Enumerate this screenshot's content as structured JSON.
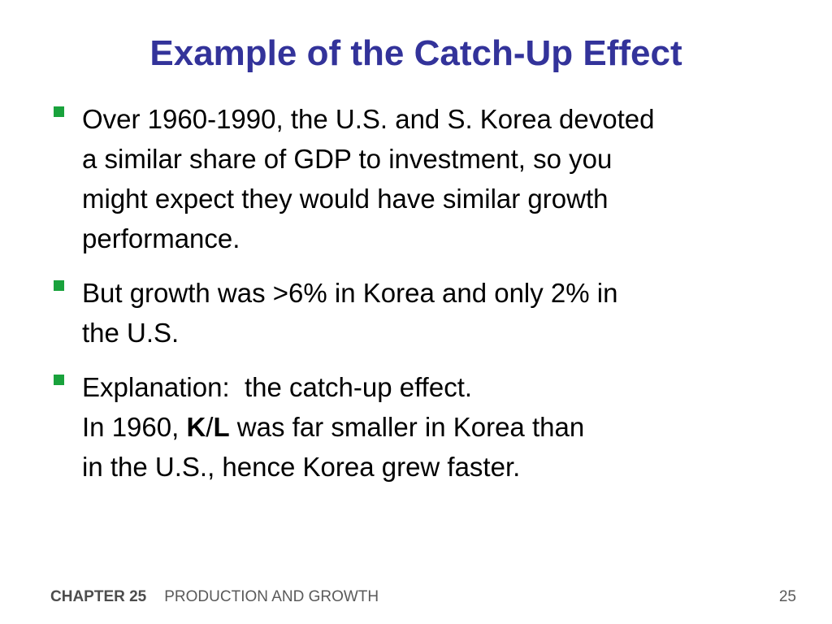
{
  "slide": {
    "title": "Example of the Catch-Up Effect",
    "bullets": [
      {
        "lines": [
          "Over 1960-1990, the U.S. and S. Korea devoted",
          "a similar share of GDP to investment, so you",
          "might expect they would have similar growth",
          "performance."
        ]
      },
      {
        "lines": [
          "But growth was >6% in Korea and only 2% in",
          "the U.S."
        ]
      },
      {
        "line1": "Explanation:  the catch-up effect.",
        "line2_prefix": "In 1960, ",
        "line2_bold_k": "K",
        "line2_slash": "/",
        "line2_bold_l": "L",
        "line2_suffix": " was far smaller in Korea than",
        "line3": "in the U.S., hence Korea grew faster."
      }
    ]
  },
  "footer": {
    "chapter": "CHAPTER 25",
    "topic": "PRODUCTION AND GROWTH",
    "page_number": "25"
  },
  "colors": {
    "title": "#33339a",
    "bullet_marker": "#19a23c",
    "footer_text": "#5a5a5a"
  }
}
